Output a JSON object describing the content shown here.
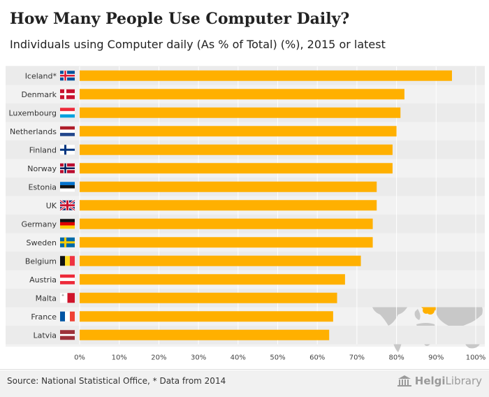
{
  "header": {
    "title": "How Many People Use Computer Daily?",
    "subtitle": "Individuals using Computer daily (As % of Total) (%), 2015 or latest"
  },
  "footer": {
    "source": "Source: National Statistical Office, * Data from 2014",
    "brand_bold": "Helgi",
    "brand_rest": "Library"
  },
  "colors": {
    "bar": "#ffb000",
    "band": "#ebebeb",
    "panel": "#f2f2f2",
    "map": "#c8c8c8",
    "map_highlight": "#ffb000"
  },
  "chart_data": {
    "type": "bar",
    "orientation": "horizontal",
    "title": "How Many People Use Computer Daily?",
    "subtitle": "Individuals using Computer daily (As % of Total) (%), 2015 or latest",
    "categories": [
      "Iceland*",
      "Denmark",
      "Luxembourg",
      "Netherlands",
      "Finland",
      "Norway",
      "Estonia",
      "UK",
      "Germany",
      "Sweden",
      "Belgium",
      "Austria",
      "Malta",
      "France",
      "Latvia"
    ],
    "values": [
      94,
      82,
      81,
      80,
      79,
      79,
      75,
      75,
      74,
      74,
      71,
      67,
      65,
      64,
      63
    ],
    "flags": [
      "iceland-flag",
      "denmark-flag",
      "luxembourg-flag",
      "netherlands-flag",
      "finland-flag",
      "norway-flag",
      "estonia-flag",
      "uk-flag",
      "germany-flag",
      "sweden-flag",
      "belgium-flag",
      "austria-flag",
      "malta-flag",
      "france-flag",
      "latvia-flag"
    ],
    "xlim": [
      0,
      100
    ],
    "xticks": [
      "0%",
      "10%",
      "20%",
      "30%",
      "40%",
      "50%",
      "60%",
      "70%",
      "80%",
      "90%",
      "100%"
    ],
    "unit": "%",
    "grid": true
  }
}
